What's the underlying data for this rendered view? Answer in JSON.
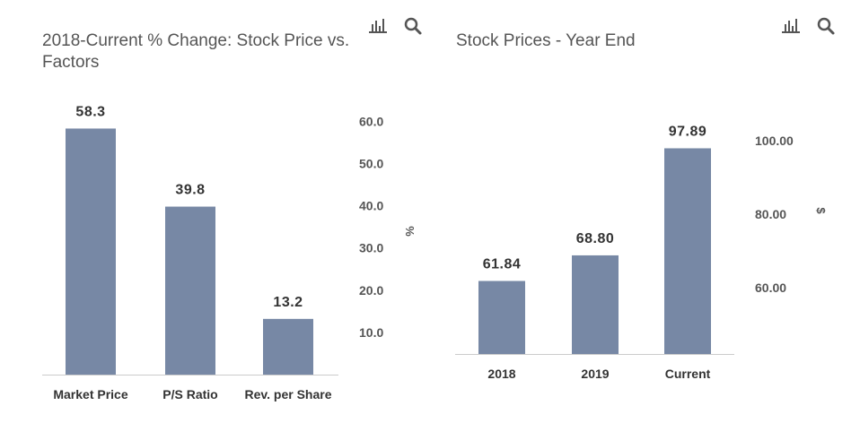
{
  "chart_data": [
    {
      "type": "bar",
      "title": "2018-Current % Change: Stock Price vs. Factors",
      "categories": [
        "Market Price",
        "P/S Ratio",
        "Rev. per Share"
      ],
      "values": [
        58.3,
        39.8,
        13.2
      ],
      "data_labels": [
        "58.3",
        "39.8",
        "13.2"
      ],
      "ylabel": "%",
      "yticks": [
        "10.0",
        "20.0",
        "30.0",
        "40.0",
        "50.0",
        "60.0"
      ],
      "ylim": [
        0,
        62
      ],
      "y_axis_side": "right",
      "grid": false,
      "bar_color": "#7788a5"
    },
    {
      "type": "bar",
      "title": "Stock Prices - Year End",
      "categories": [
        "2018",
        "2019",
        "Current"
      ],
      "values": [
        61.84,
        68.8,
        97.89
      ],
      "data_labels": [
        "61.84",
        "68.80",
        "97.89"
      ],
      "ylabel": "$",
      "yticks": [
        "60.00",
        "80.00",
        "100.00"
      ],
      "ylim": [
        42,
        107.5
      ],
      "y_axis_side": "right",
      "grid": false,
      "bar_color": "#7788a5"
    }
  ],
  "toolbar": {
    "chart_icon": "bar-chart-icon",
    "search_icon": "search-icon"
  },
  "colors": {
    "bar": "#7788a5",
    "axis_text": "#555555",
    "label_text": "#333333",
    "icon": "#555555"
  }
}
